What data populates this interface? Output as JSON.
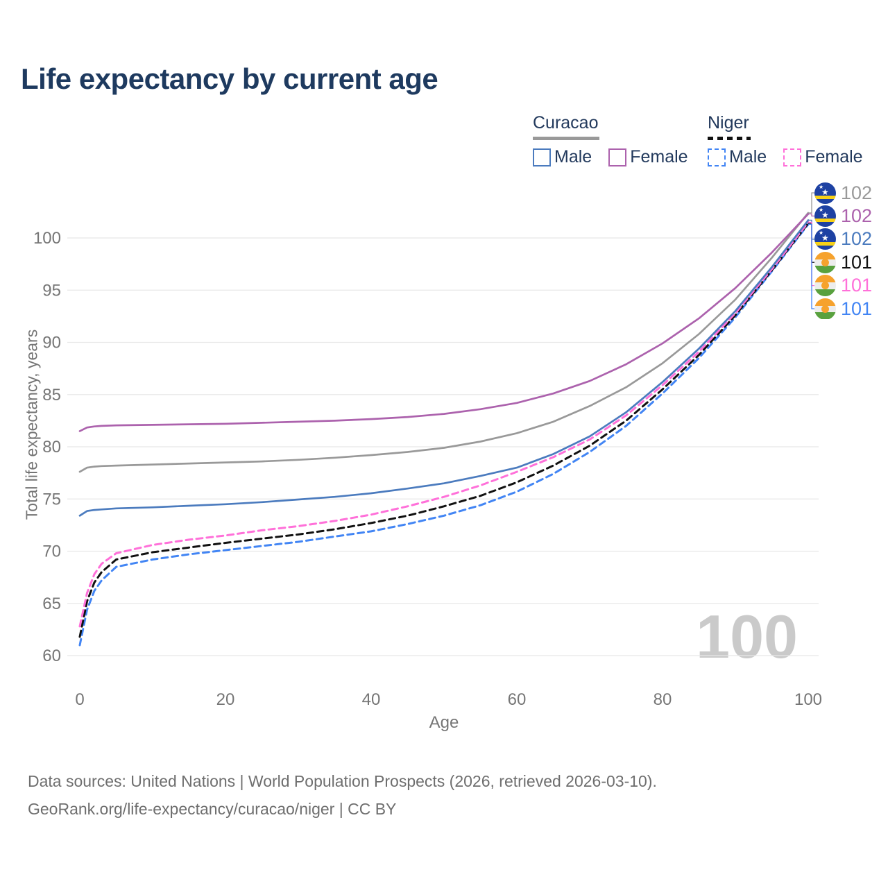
{
  "header": {
    "title": "Life expectancy by current age"
  },
  "legend": {
    "groups": [
      {
        "country": "Curacao",
        "line_style": "solid",
        "underline_color": "#999999",
        "items": [
          {
            "label": "Male",
            "color": "#4b7bbe",
            "dashed": false
          },
          {
            "label": "Female",
            "color": "#ac62ad",
            "dashed": false
          }
        ]
      },
      {
        "country": "Niger",
        "line_style": "dashed",
        "underline_color": "#111111",
        "items": [
          {
            "label": "Male",
            "color": "#4285f4",
            "dashed": true
          },
          {
            "label": "Female",
            "color": "#ff70d9",
            "dashed": true
          }
        ]
      }
    ]
  },
  "watermark": {
    "current_age": "100"
  },
  "footer": {
    "line1": "Data sources: United Nations | World Population Prospects (2026, retrieved 2026-03-10).",
    "line2": "GeoRank.org/life-expectancy/curacao/niger | CC BY"
  },
  "chart_data": {
    "type": "line",
    "title": "Life expectancy by current age",
    "xlabel": "Age",
    "ylabel": "Total life expectancy, years",
    "xlim": [
      0,
      100
    ],
    "ylim": [
      58,
      104
    ],
    "xticks": [
      0,
      20,
      40,
      60,
      80,
      100
    ],
    "yticks": [
      60,
      65,
      70,
      75,
      80,
      85,
      90,
      95,
      100
    ],
    "grid": true,
    "legend_position": "top-right",
    "x": [
      0,
      1,
      2,
      3,
      5,
      10,
      15,
      20,
      25,
      30,
      35,
      40,
      45,
      50,
      55,
      60,
      65,
      70,
      75,
      80,
      85,
      90,
      95,
      100
    ],
    "series": [
      {
        "id": "curacao-all",
        "name": "Curacao (both sexes)",
        "country": "Curacao",
        "sex": "All",
        "style": "solid",
        "color": "#999999",
        "flag": "curacao",
        "end_label": "102",
        "values": [
          77.6,
          78.0,
          78.1,
          78.15,
          78.2,
          78.3,
          78.4,
          78.5,
          78.6,
          78.75,
          78.95,
          79.2,
          79.5,
          79.9,
          80.5,
          81.3,
          82.4,
          83.9,
          85.7,
          88.0,
          90.8,
          94.1,
          98.1,
          102.4
        ]
      },
      {
        "id": "curacao-female",
        "name": "Curacao Female",
        "country": "Curacao",
        "sex": "Female",
        "style": "solid",
        "color": "#ac62ad",
        "flag": "curacao",
        "end_label": "102",
        "values": [
          81.5,
          81.85,
          81.95,
          82.0,
          82.05,
          82.1,
          82.15,
          82.2,
          82.3,
          82.4,
          82.5,
          82.65,
          82.85,
          83.15,
          83.6,
          84.2,
          85.1,
          86.3,
          87.9,
          89.9,
          92.3,
          95.2,
          98.6,
          102.3
        ]
      },
      {
        "id": "curacao-male",
        "name": "Curacao Male",
        "country": "Curacao",
        "sex": "Male",
        "style": "solid",
        "color": "#4b7bbe",
        "flag": "curacao",
        "end_label": "102",
        "values": [
          73.4,
          73.85,
          73.95,
          74.0,
          74.1,
          74.2,
          74.35,
          74.5,
          74.7,
          74.95,
          75.2,
          75.55,
          76.0,
          76.5,
          77.2,
          78.0,
          79.3,
          81.0,
          83.3,
          86.2,
          89.4,
          93.0,
          97.2,
          101.7
        ]
      },
      {
        "id": "niger-all",
        "name": "Niger (both sexes)",
        "country": "Niger",
        "sex": "All",
        "style": "dashed",
        "color": "#111111",
        "flag": "niger",
        "end_label": "101",
        "values": [
          61.8,
          65.2,
          67.0,
          68.0,
          69.2,
          69.9,
          70.35,
          70.8,
          71.2,
          71.6,
          72.1,
          72.7,
          73.4,
          74.3,
          75.3,
          76.6,
          78.2,
          80.1,
          82.5,
          85.5,
          88.8,
          92.6,
          96.9,
          101.4
        ]
      },
      {
        "id": "niger-female",
        "name": "Niger Female",
        "country": "Niger",
        "sex": "Female",
        "style": "dashed",
        "color": "#ff70d9",
        "flag": "niger",
        "end_label": "101",
        "values": [
          62.8,
          66.0,
          67.8,
          68.8,
          69.8,
          70.6,
          71.1,
          71.5,
          72.0,
          72.4,
          72.9,
          73.5,
          74.3,
          75.2,
          76.3,
          77.6,
          79.0,
          80.7,
          83.0,
          85.9,
          89.1,
          92.8,
          97.0,
          101.5
        ]
      },
      {
        "id": "niger-male",
        "name": "Niger Male",
        "country": "Niger",
        "sex": "Male",
        "style": "dashed",
        "color": "#4285f4",
        "flag": "niger",
        "end_label": "101",
        "values": [
          61.0,
          64.4,
          66.2,
          67.2,
          68.5,
          69.2,
          69.7,
          70.1,
          70.5,
          70.9,
          71.4,
          71.9,
          72.6,
          73.4,
          74.4,
          75.7,
          77.4,
          79.5,
          82.0,
          85.1,
          88.5,
          92.4,
          96.8,
          101.3
        ]
      }
    ]
  }
}
